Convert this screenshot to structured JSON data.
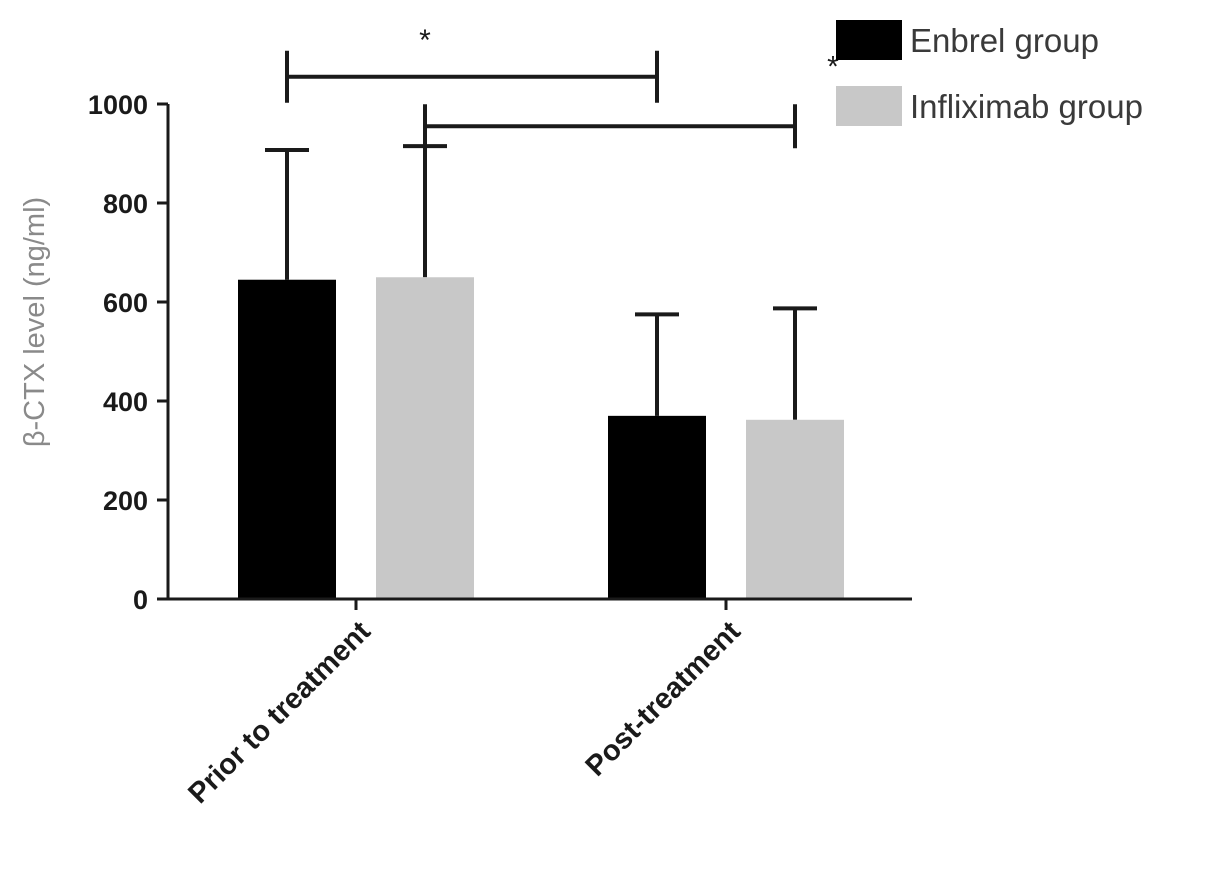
{
  "chart_data": {
    "type": "bar",
    "title": "",
    "xlabel": "",
    "ylabel": "β-CTX level (ng/ml)",
    "ylim": [
      0,
      1000
    ],
    "yticks": [
      0,
      200,
      400,
      600,
      800,
      1000
    ],
    "categories": [
      "Prior to treatment",
      "Post-treatment"
    ],
    "series": [
      {
        "name": "Enbrel group",
        "color": "#000000",
        "values": [
          645,
          370
        ],
        "error": [
          262,
          205
        ]
      },
      {
        "name": "Infliximab group",
        "color": "#c8c8c8",
        "values": [
          650,
          362
        ],
        "error": [
          265,
          225
        ]
      }
    ],
    "legend": {
      "placement": "top-right"
    },
    "significance": [
      {
        "label": "*",
        "from": "Prior to treatment / Enbrel group",
        "to": "Post-treatment / Enbrel group"
      },
      {
        "label": "*",
        "from": "Prior to treatment / Infliximab group",
        "to": "Post-treatment / Infliximab group"
      }
    ],
    "grid": false
  }
}
